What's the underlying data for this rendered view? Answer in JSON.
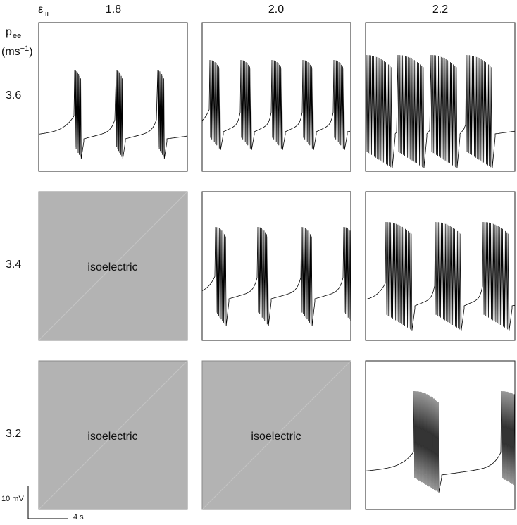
{
  "header": {
    "column_symbol": "ε",
    "column_subscript": "ii",
    "row_symbol": "p",
    "row_subscript": "ee",
    "row_unit": "(ms",
    "row_unit_exponent": "−1",
    "row_unit_close": ")"
  },
  "columns": [
    "1.8",
    "2.0",
    "2.2"
  ],
  "rows": [
    "3.6",
    "3.4",
    "3.2"
  ],
  "isoelectric_labels": [
    "isoelectric",
    "isoelectric",
    "isoelectric"
  ],
  "scale_bar": {
    "vertical": "10 mV",
    "horizontal": "4 s"
  }
}
